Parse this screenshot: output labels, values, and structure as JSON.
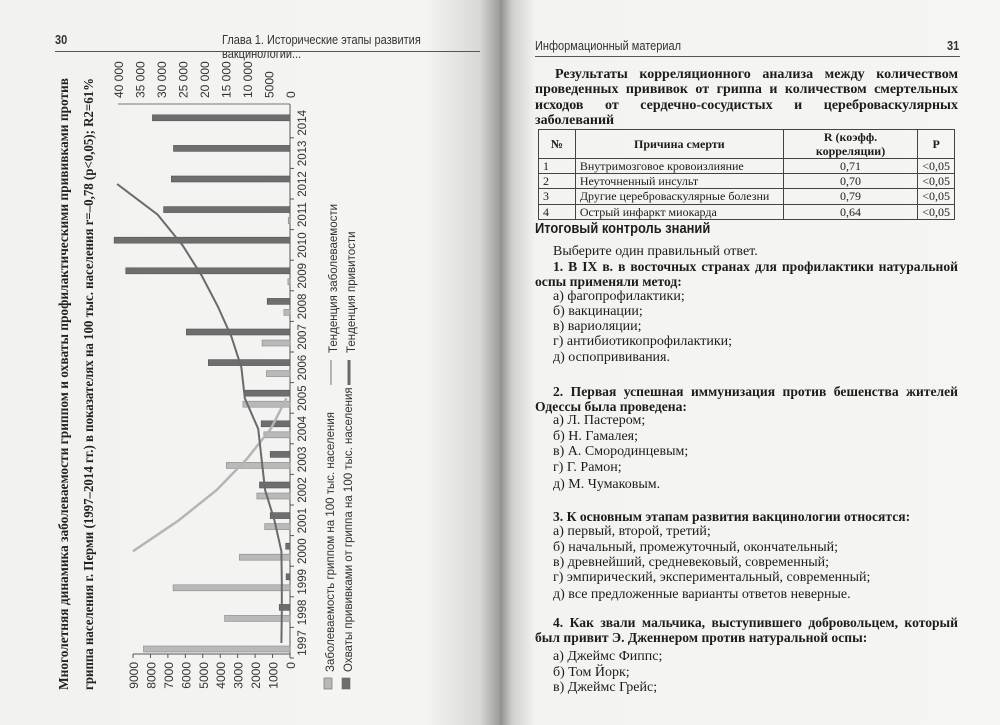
{
  "left_page": {
    "page_number": "30",
    "running_header": "Глава 1. Исторические этапы развития вакцинологии...",
    "chart_data": {
      "type": "bar",
      "orientation": "rotated 90° (years along page height)",
      "title_line1": "Многолетняя динамика заболеваемости гриппом и охваты профилактическими прививками против",
      "title_line2": "гриппа населения г. Перми (1997–2014 гг.) в показателях на 100 тыс. населения r=–0,78 (p<0,05); R2=61%",
      "categories": [
        "1997",
        "1998",
        "1999",
        "2000",
        "2001",
        "2002",
        "2003",
        "2004",
        "2005",
        "2006",
        "2007",
        "2008",
        "2009",
        "2010",
        "2011",
        "2012",
        "2013",
        "2014"
      ],
      "left_axis": {
        "ylim": [
          0,
          9000
        ],
        "ticks": [
          "0",
          "1000",
          "2000",
          "3000",
          "4000",
          "5000",
          "6000",
          "7000",
          "8000",
          "9000"
        ]
      },
      "right_axis": {
        "ylim": [
          0,
          40000
        ],
        "ticks": [
          "0",
          "5000",
          "10 000",
          "15 000",
          "20 000",
          "25 000",
          "30 000",
          "35 000",
          "40 000"
        ]
      },
      "series": [
        {
          "name": "Заболеваемость гриппом на 100 тыс. населения",
          "axis": "left",
          "kind": "bar",
          "color": "#b9b9b9",
          "values": [
            8400,
            3750,
            6700,
            2900,
            1450,
            1900,
            3650,
            1500,
            2700,
            1350,
            1600,
            350,
            120,
            null,
            100,
            null,
            null,
            null
          ]
        },
        {
          "name": "Охваты прививками от гриппа на 100 тыс. населения",
          "axis": "right",
          "kind": "bar",
          "color": "#6e6e6e",
          "values": [
            null,
            2500,
            900,
            1000,
            4600,
            7100,
            4600,
            6700,
            10600,
            19000,
            24100,
            5300,
            38200,
            40900,
            29400,
            27600,
            27100,
            32000
          ]
        },
        {
          "name": "Тенденция заболеваемости",
          "axis": "left",
          "kind": "trend",
          "color": "#b5b5b5",
          "values": [
            null,
            null,
            null,
            9000,
            6400,
            4200,
            2500,
            1100,
            200,
            null,
            null,
            null,
            null,
            null,
            null,
            null,
            null,
            null
          ]
        },
        {
          "name": "Тенденция привитости",
          "axis": "right",
          "kind": "trend",
          "color": "#6a6a6a",
          "values": [
            2000,
            1900,
            1900,
            2000,
            3600,
            5800,
            6600,
            7400,
            10500,
            11300,
            13600,
            16800,
            20500,
            25000,
            30800,
            40200,
            null,
            null
          ]
        }
      ],
      "grid": false,
      "legend": "bottom"
    }
  },
  "right_page": {
    "running_header": "Информационный материал",
    "page_number": "31",
    "table_title": "Результаты корреляционного анализа между количеством проведенных прививок от гриппа и количеством смертельных исходов от сердечно-сосудистых и цереброваскулярных заболеваний",
    "table": {
      "headers": [
        "№",
        "Причина смерти",
        "R (коэфф. корреляции)",
        "P"
      ],
      "rows": [
        [
          "1",
          "Внутримозговое кровоизлияние",
          "0,71",
          "<0,05"
        ],
        [
          "2",
          "Неуточненный инсульт",
          "0,70",
          "<0,05"
        ],
        [
          "3",
          "Другие цереброваскулярные болезни",
          "0,79",
          "<0,05"
        ],
        [
          "4",
          "Острый инфаркт миокарда",
          "0,64",
          "<0,05"
        ]
      ]
    },
    "section_title": "Итоговый контроль знаний",
    "instruction": "Выберите один правильный ответ.",
    "questions": [
      {
        "text": "1. В IX в. в восточных странах для профилактики натуральной оспы применяли метод:",
        "options": [
          "а) фагопрофилактики;",
          "б) вакцинации;",
          "в) вариоляции;",
          "г) антибиотикопрофилактики;",
          "д) оспопрививания."
        ]
      },
      {
        "text": "2. Первая успешная иммунизация против бешенства жителей Одессы была проведена:",
        "options": [
          "а) Л. Пастером;",
          "б) Н. Гамалея;",
          "в) А. Смородинцевым;",
          "г) Г. Рамон;",
          "д) М. Чумаковым."
        ]
      },
      {
        "text": "3. К основным этапам развития вакцинологии относятся:",
        "options": [
          "а) первый, второй, третий;",
          "б) начальный, промежуточный, окончательный;",
          "в) древнейший, средневековый, современный;",
          "г) эмпирический, экспериментальный, современный;",
          "д) все предложенные варианты ответов неверные."
        ]
      },
      {
        "text": "4. Как звали мальчика, выступившего добровольцем, который был привит Э. Дженнером против натуральной оспы:",
        "options": [
          "а) Джеймс Фиппс;",
          "б) Том Йорк;",
          "в) Джеймс Грейс;"
        ]
      }
    ]
  }
}
